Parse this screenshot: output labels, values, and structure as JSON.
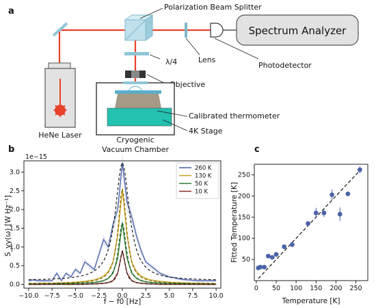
{
  "panels": {
    "a": "a",
    "b": "b",
    "c": "c"
  },
  "setup": {
    "polarization_beam_splitter": "Polarization Beam Splitter",
    "spectrum_analyzer": "Spectrum Analyzer",
    "lens": "Lens",
    "photodetector": "Photodetector",
    "quarter_wave": "λ/4",
    "objective": "Objective",
    "calibrated_thermometer": "Calibrated thermometer",
    "stage": "4K Stage",
    "laser": "HeNe Laser",
    "chamber_line1": "Cryogenic",
    "chamber_line2": "Vacuum Chamber",
    "colors": {
      "beam": "#e8402a",
      "bs": "#a9d7e6",
      "stage": "#22c1b0",
      "analyzer": "#e2e2e2"
    }
  },
  "chart_data": [
    {
      "type": "line",
      "panel": "b",
      "ylabel": "S_yy(ω) [W Hz⁻¹]",
      "xlabel": "f − f0 [Hz]",
      "offset_text": "1e−15",
      "xlim": [
        -10.5,
        10.5
      ],
      "ylim": [
        -0.1,
        3.3
      ],
      "xticks": [
        -10.0,
        -7.5,
        -5.0,
        -2.5,
        0.0,
        2.5,
        5.0,
        7.5,
        10.0
      ],
      "xtick_labels": [
        "−10.0",
        "−7.5",
        "−5.0",
        "−2.5",
        "0.0",
        "2.5",
        "5.0",
        "7.5",
        "10.0"
      ],
      "yticks": [
        0.0,
        0.5,
        1.0,
        1.5,
        2.0,
        2.5,
        3.0
      ],
      "ytick_labels": [
        "0.0",
        "0.5",
        "1.0",
        "1.5",
        "2.0",
        "2.5",
        "3.0"
      ],
      "legend_position": "top-right",
      "x": [
        -10,
        -9.5,
        -9,
        -8.5,
        -8,
        -7.5,
        -7,
        -6.5,
        -6,
        -5.5,
        -5,
        -4.5,
        -4,
        -3.5,
        -3,
        -2.5,
        -2,
        -1.5,
        -1,
        -0.5,
        0,
        0.5,
        1,
        1.5,
        2,
        2.5,
        3,
        3.5,
        4,
        4.5,
        5,
        5.5,
        6,
        6.5,
        7,
        7.5,
        8,
        8.5,
        9,
        9.5,
        10
      ],
      "series": [
        {
          "name": "260 K",
          "color": "#4a62a8",
          "values": [
            0.1,
            0.12,
            0.1,
            0.1,
            0.1,
            0.1,
            0.3,
            0.1,
            0.3,
            0.2,
            0.4,
            0.3,
            0.6,
            0.5,
            0.4,
            0.8,
            1.2,
            1.0,
            1.6,
            2.0,
            3.25,
            2.2,
            1.8,
            1.3,
            0.9,
            0.6,
            0.5,
            0.4,
            0.3,
            0.25,
            0.2,
            0.18,
            0.15,
            0.13,
            0.12,
            0.11,
            0.1,
            0.1,
            0.1,
            0.1,
            0.1
          ]
        },
        {
          "name": "130 K",
          "color": "#c9a227",
          "values": [
            0.02,
            0.02,
            0.02,
            0.03,
            0.03,
            0.03,
            0.04,
            0.04,
            0.05,
            0.05,
            0.06,
            0.07,
            0.08,
            0.1,
            0.12,
            0.16,
            0.22,
            0.34,
            0.6,
            1.3,
            2.55,
            1.3,
            0.6,
            0.34,
            0.22,
            0.16,
            0.12,
            0.1,
            0.08,
            0.07,
            0.06,
            0.05,
            0.05,
            0.04,
            0.04,
            0.03,
            0.03,
            0.03,
            0.02,
            0.02,
            0.02
          ]
        },
        {
          "name": "50 K",
          "color": "#2e7d32",
          "values": [
            0.01,
            0.01,
            0.01,
            0.01,
            0.01,
            0.01,
            0.02,
            0.02,
            0.02,
            0.02,
            0.03,
            0.03,
            0.04,
            0.04,
            0.05,
            0.07,
            0.1,
            0.16,
            0.3,
            0.7,
            1.65,
            0.7,
            0.3,
            0.16,
            0.1,
            0.07,
            0.05,
            0.04,
            0.04,
            0.03,
            0.03,
            0.02,
            0.02,
            0.02,
            0.02,
            0.01,
            0.01,
            0.01,
            0.01,
            0.01,
            0.01
          ]
        },
        {
          "name": "10 K",
          "color": "#8b2a1e",
          "values": [
            0.0,
            0.0,
            0.0,
            0.0,
            0.0,
            0.0,
            0.0,
            0.0,
            0.0,
            0.0,
            0.0,
            0.0,
            0.0,
            0.01,
            0.01,
            0.02,
            0.03,
            0.05,
            0.1,
            0.3,
            0.9,
            0.3,
            0.1,
            0.05,
            0.03,
            0.02,
            0.01,
            0.01,
            0.0,
            0.0,
            0.0,
            0.0,
            0.0,
            0.0,
            0.0,
            0.0,
            0.0,
            0.0,
            0.0,
            0.0,
            0.0
          ]
        }
      ]
    },
    {
      "type": "scatter",
      "panel": "c",
      "xlabel": "Temperature [K]",
      "ylabel": "Fitted Temperature [K]",
      "xlim": [
        -5,
        280
      ],
      "ylim": [
        0,
        275
      ],
      "xticks": [
        0,
        50,
        100,
        150,
        200,
        250
      ],
      "yticks": [
        50,
        100,
        150,
        200,
        250
      ],
      "point_color": "#4a62a8",
      "fit_line": {
        "x": [
          5,
          265
        ],
        "y": [
          5,
          265
        ],
        "style": "dashed"
      },
      "points": [
        {
          "x": 5,
          "y": 30,
          "err": 4
        },
        {
          "x": 10,
          "y": 32,
          "err": 3
        },
        {
          "x": 20,
          "y": 32,
          "err": 3
        },
        {
          "x": 30,
          "y": 58,
          "err": 4
        },
        {
          "x": 40,
          "y": 55,
          "err": 4
        },
        {
          "x": 50,
          "y": 62,
          "err": 4
        },
        {
          "x": 70,
          "y": 80,
          "err": 5
        },
        {
          "x": 90,
          "y": 85,
          "err": 5
        },
        {
          "x": 130,
          "y": 135,
          "err": 4
        },
        {
          "x": 150,
          "y": 160,
          "err": 12
        },
        {
          "x": 170,
          "y": 160,
          "err": 10
        },
        {
          "x": 190,
          "y": 203,
          "err": 12
        },
        {
          "x": 210,
          "y": 157,
          "err": 16
        },
        {
          "x": 230,
          "y": 205,
          "err": 5
        },
        {
          "x": 260,
          "y": 262,
          "err": 8
        }
      ]
    }
  ]
}
